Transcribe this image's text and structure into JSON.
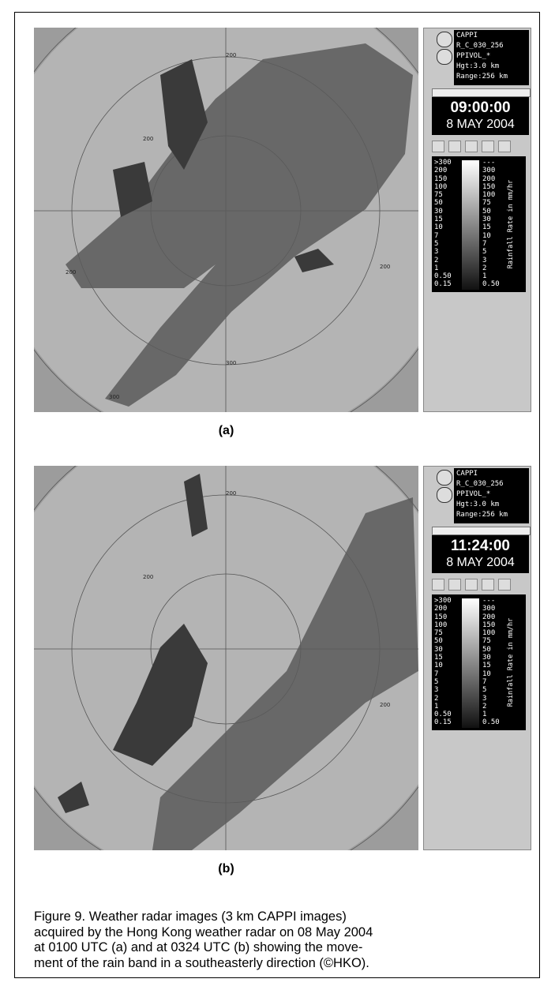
{
  "panels": [
    {
      "label": "(a)",
      "info": [
        "CAPPI",
        "R_C_030_256",
        "PPIVOL_*",
        "Hgt:3.0 km",
        "Range:256 km"
      ],
      "time": "09:00:00",
      "date": "8 MAY 2004",
      "legend_left": [
        ">300",
        "200",
        "150",
        "100",
        "75",
        "50",
        "30",
        "15",
        "10",
        "7",
        "5",
        "3",
        "2",
        "1",
        "0.50",
        "0.15"
      ],
      "legend_right": [
        "---",
        "300",
        "200",
        "150",
        "100",
        "75",
        "50",
        "30",
        "15",
        "10",
        "7",
        "5",
        "3",
        "2",
        "1",
        "0.50"
      ],
      "legend_title": "Rainfall Rate in mm/hr",
      "ring_labels": [
        "200",
        "200",
        "200",
        "200",
        "300",
        "300"
      ]
    },
    {
      "label": "(b)",
      "info": [
        "CAPPI",
        "R_C_030_256",
        "PPIVOL_*",
        "Hgt:3.0 km",
        "Range:256 km"
      ],
      "time": "11:24:00",
      "date": "8 MAY 2004",
      "legend_left": [
        ">300",
        "200",
        "150",
        "100",
        "75",
        "50",
        "30",
        "15",
        "10",
        "7",
        "5",
        "3",
        "2",
        "1",
        "0.50",
        "0.15"
      ],
      "legend_right": [
        "---",
        "300",
        "200",
        "150",
        "100",
        "75",
        "50",
        "30",
        "15",
        "10",
        "7",
        "5",
        "3",
        "2",
        "1",
        "0.50"
      ],
      "legend_title": "Rainfall Rate in mm/hr",
      "ring_labels": [
        "200",
        "200",
        "200"
      ]
    }
  ],
  "caption": [
    "Figure 9. Weather radar images (3 km CAPPI images)",
    "acquired by the Hong Kong weather radar on 08 May 2004",
    "at 0100 UTC (a) and at 0324 UTC (b) showing the move-",
    "ment of the rain band in a southeasterly direction (©HKO)."
  ]
}
